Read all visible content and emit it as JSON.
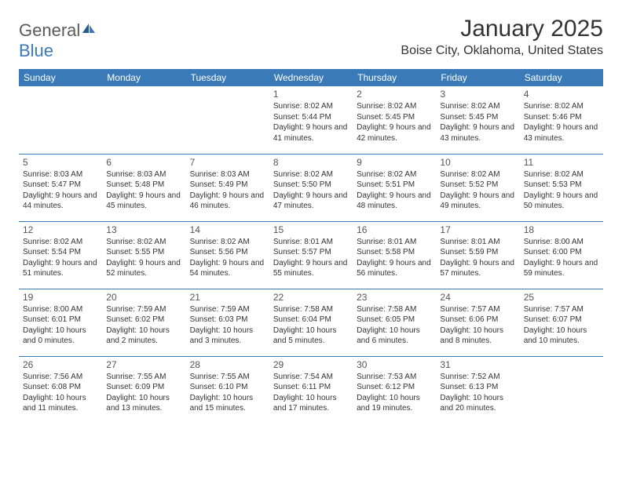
{
  "logo": {
    "general": "General",
    "blue": "Blue"
  },
  "title": "January 2025",
  "location": "Boise City, Oklahoma, United States",
  "colors": {
    "header_bg": "#3a7ab8",
    "header_text": "#ffffff",
    "border": "#3a7ab8",
    "text": "#333333",
    "logo_gray": "#5a5a5a",
    "logo_blue": "#3a7ab8",
    "background": "#ffffff"
  },
  "typography": {
    "title_fontsize": 30,
    "location_fontsize": 16,
    "dayheader_fontsize": 12,
    "daynum_fontsize": 12,
    "detail_fontsize": 10
  },
  "day_headers": [
    "Sunday",
    "Monday",
    "Tuesday",
    "Wednesday",
    "Thursday",
    "Friday",
    "Saturday"
  ],
  "weeks": [
    [
      null,
      null,
      null,
      {
        "d": "1",
        "sr": "8:02 AM",
        "ss": "5:44 PM",
        "dl": "9 hours and 41 minutes."
      },
      {
        "d": "2",
        "sr": "8:02 AM",
        "ss": "5:45 PM",
        "dl": "9 hours and 42 minutes."
      },
      {
        "d": "3",
        "sr": "8:02 AM",
        "ss": "5:45 PM",
        "dl": "9 hours and 43 minutes."
      },
      {
        "d": "4",
        "sr": "8:02 AM",
        "ss": "5:46 PM",
        "dl": "9 hours and 43 minutes."
      }
    ],
    [
      {
        "d": "5",
        "sr": "8:03 AM",
        "ss": "5:47 PM",
        "dl": "9 hours and 44 minutes."
      },
      {
        "d": "6",
        "sr": "8:03 AM",
        "ss": "5:48 PM",
        "dl": "9 hours and 45 minutes."
      },
      {
        "d": "7",
        "sr": "8:03 AM",
        "ss": "5:49 PM",
        "dl": "9 hours and 46 minutes."
      },
      {
        "d": "8",
        "sr": "8:02 AM",
        "ss": "5:50 PM",
        "dl": "9 hours and 47 minutes."
      },
      {
        "d": "9",
        "sr": "8:02 AM",
        "ss": "5:51 PM",
        "dl": "9 hours and 48 minutes."
      },
      {
        "d": "10",
        "sr": "8:02 AM",
        "ss": "5:52 PM",
        "dl": "9 hours and 49 minutes."
      },
      {
        "d": "11",
        "sr": "8:02 AM",
        "ss": "5:53 PM",
        "dl": "9 hours and 50 minutes."
      }
    ],
    [
      {
        "d": "12",
        "sr": "8:02 AM",
        "ss": "5:54 PM",
        "dl": "9 hours and 51 minutes."
      },
      {
        "d": "13",
        "sr": "8:02 AM",
        "ss": "5:55 PM",
        "dl": "9 hours and 52 minutes."
      },
      {
        "d": "14",
        "sr": "8:02 AM",
        "ss": "5:56 PM",
        "dl": "9 hours and 54 minutes."
      },
      {
        "d": "15",
        "sr": "8:01 AM",
        "ss": "5:57 PM",
        "dl": "9 hours and 55 minutes."
      },
      {
        "d": "16",
        "sr": "8:01 AM",
        "ss": "5:58 PM",
        "dl": "9 hours and 56 minutes."
      },
      {
        "d": "17",
        "sr": "8:01 AM",
        "ss": "5:59 PM",
        "dl": "9 hours and 57 minutes."
      },
      {
        "d": "18",
        "sr": "8:00 AM",
        "ss": "6:00 PM",
        "dl": "9 hours and 59 minutes."
      }
    ],
    [
      {
        "d": "19",
        "sr": "8:00 AM",
        "ss": "6:01 PM",
        "dl": "10 hours and 0 minutes."
      },
      {
        "d": "20",
        "sr": "7:59 AM",
        "ss": "6:02 PM",
        "dl": "10 hours and 2 minutes."
      },
      {
        "d": "21",
        "sr": "7:59 AM",
        "ss": "6:03 PM",
        "dl": "10 hours and 3 minutes."
      },
      {
        "d": "22",
        "sr": "7:58 AM",
        "ss": "6:04 PM",
        "dl": "10 hours and 5 minutes."
      },
      {
        "d": "23",
        "sr": "7:58 AM",
        "ss": "6:05 PM",
        "dl": "10 hours and 6 minutes."
      },
      {
        "d": "24",
        "sr": "7:57 AM",
        "ss": "6:06 PM",
        "dl": "10 hours and 8 minutes."
      },
      {
        "d": "25",
        "sr": "7:57 AM",
        "ss": "6:07 PM",
        "dl": "10 hours and 10 minutes."
      }
    ],
    [
      {
        "d": "26",
        "sr": "7:56 AM",
        "ss": "6:08 PM",
        "dl": "10 hours and 11 minutes."
      },
      {
        "d": "27",
        "sr": "7:55 AM",
        "ss": "6:09 PM",
        "dl": "10 hours and 13 minutes."
      },
      {
        "d": "28",
        "sr": "7:55 AM",
        "ss": "6:10 PM",
        "dl": "10 hours and 15 minutes."
      },
      {
        "d": "29",
        "sr": "7:54 AM",
        "ss": "6:11 PM",
        "dl": "10 hours and 17 minutes."
      },
      {
        "d": "30",
        "sr": "7:53 AM",
        "ss": "6:12 PM",
        "dl": "10 hours and 19 minutes."
      },
      {
        "d": "31",
        "sr": "7:52 AM",
        "ss": "6:13 PM",
        "dl": "10 hours and 20 minutes."
      },
      null
    ]
  ],
  "labels": {
    "sunrise": "Sunrise: ",
    "sunset": "Sunset: ",
    "daylight": "Daylight: "
  }
}
